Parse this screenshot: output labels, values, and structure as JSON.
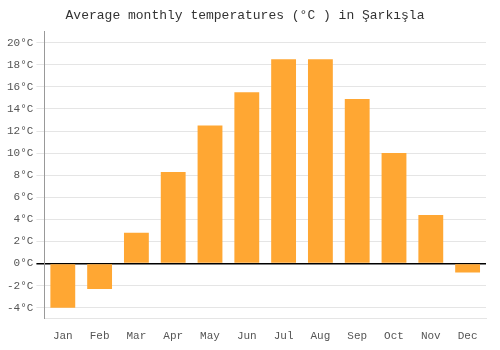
{
  "chart_data": {
    "type": "bar",
    "title": "Average monthly temperatures (°C ) in Şarkışla",
    "categories": [
      "Jan",
      "Feb",
      "Mar",
      "Apr",
      "May",
      "Jun",
      "Jul",
      "Aug",
      "Sep",
      "Oct",
      "Nov",
      "Dec"
    ],
    "values": [
      -4.0,
      -2.3,
      2.8,
      8.3,
      12.5,
      15.5,
      18.5,
      18.5,
      14.9,
      10.0,
      4.4,
      -0.8
    ],
    "color": "#FFA733",
    "ylim": [
      -5,
      21
    ],
    "yticks": [
      {
        "value": -4,
        "label": "-4°C"
      },
      {
        "value": -2,
        "label": "-2°C"
      },
      {
        "value": 0,
        "label": "0°C"
      },
      {
        "value": 2,
        "label": "2°C"
      },
      {
        "value": 4,
        "label": "4°C"
      },
      {
        "value": 6,
        "label": "6°C"
      },
      {
        "value": 8,
        "label": "8°C"
      },
      {
        "value": 10,
        "label": "10°C"
      },
      {
        "value": 12,
        "label": "12°C"
      },
      {
        "value": 14,
        "label": "14°C"
      },
      {
        "value": 16,
        "label": "16°C"
      },
      {
        "value": 18,
        "label": "18°C"
      },
      {
        "value": 20,
        "label": "20°C"
      }
    ],
    "grid": true
  }
}
